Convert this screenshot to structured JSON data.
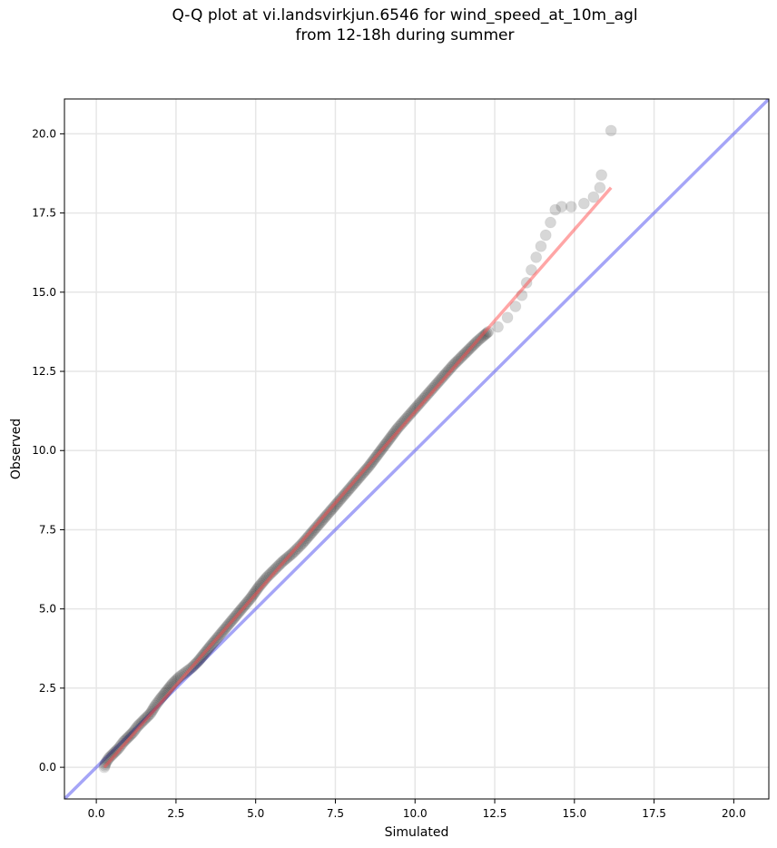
{
  "chart_data": {
    "type": "scatter",
    "title": "Q-Q plot at vi.landsvirkjun.6546 for wind_speed_at_10m_agl\nfrom 12-18h during summer",
    "xlabel": "Simulated",
    "ylabel": "Observed",
    "xlim": [
      -1.0,
      21.1
    ],
    "ylim": [
      -1.0,
      21.1
    ],
    "xticks": [
      "0.0",
      "2.5",
      "5.0",
      "7.5",
      "10.0",
      "12.5",
      "15.0",
      "17.5",
      "20.0"
    ],
    "yticks": [
      "0.0",
      "2.5",
      "5.0",
      "7.5",
      "10.0",
      "12.5",
      "15.0",
      "17.5",
      "20.0"
    ],
    "grid": true,
    "series": [
      {
        "role": "quantiles",
        "color": "#222222",
        "points": [
          [
            0.25,
            0.0
          ],
          [
            0.3,
            0.15
          ],
          [
            0.4,
            0.3
          ],
          [
            0.55,
            0.45
          ],
          [
            0.7,
            0.6
          ],
          [
            0.85,
            0.8
          ],
          [
            1.0,
            0.95
          ],
          [
            1.15,
            1.1
          ],
          [
            1.3,
            1.3
          ],
          [
            1.5,
            1.5
          ],
          [
            1.7,
            1.7
          ],
          [
            1.85,
            1.95
          ],
          [
            2.0,
            2.15
          ],
          [
            2.2,
            2.4
          ],
          [
            2.4,
            2.65
          ],
          [
            2.6,
            2.85
          ],
          [
            2.8,
            3.0
          ],
          [
            3.0,
            3.15
          ],
          [
            3.2,
            3.35
          ],
          [
            3.4,
            3.6
          ],
          [
            3.6,
            3.85
          ],
          [
            3.85,
            4.15
          ],
          [
            4.1,
            4.45
          ],
          [
            4.35,
            4.75
          ],
          [
            4.6,
            5.05
          ],
          [
            4.85,
            5.35
          ],
          [
            5.1,
            5.7
          ],
          [
            5.35,
            6.0
          ],
          [
            5.6,
            6.25
          ],
          [
            5.85,
            6.5
          ],
          [
            6.15,
            6.75
          ],
          [
            6.45,
            7.05
          ],
          [
            6.75,
            7.4
          ],
          [
            7.05,
            7.75
          ],
          [
            7.35,
            8.1
          ],
          [
            7.65,
            8.45
          ],
          [
            7.95,
            8.8
          ],
          [
            8.25,
            9.15
          ],
          [
            8.55,
            9.5
          ],
          [
            8.85,
            9.9
          ],
          [
            9.15,
            10.3
          ],
          [
            9.45,
            10.7
          ],
          [
            9.8,
            11.1
          ],
          [
            10.15,
            11.5
          ],
          [
            10.5,
            11.9
          ],
          [
            10.85,
            12.3
          ],
          [
            11.2,
            12.7
          ],
          [
            11.6,
            13.1
          ],
          [
            11.95,
            13.45
          ],
          [
            12.3,
            13.75
          ],
          [
            12.6,
            13.9
          ],
          [
            12.9,
            14.2
          ],
          [
            13.15,
            14.55
          ],
          [
            13.35,
            14.9
          ],
          [
            13.5,
            15.3
          ],
          [
            13.65,
            15.7
          ],
          [
            13.8,
            16.1
          ],
          [
            13.95,
            16.45
          ],
          [
            14.1,
            16.8
          ],
          [
            14.25,
            17.2
          ],
          [
            14.4,
            17.6
          ],
          [
            14.6,
            17.7
          ],
          [
            14.9,
            17.7
          ],
          [
            15.3,
            17.8
          ],
          [
            15.6,
            18.0
          ],
          [
            15.8,
            18.3
          ],
          [
            15.85,
            18.7
          ],
          [
            16.15,
            20.1
          ]
        ]
      },
      {
        "role": "fit-line",
        "color": "#ff4d4d",
        "from": [
          0.25,
          0.0
        ],
        "to": [
          16.15,
          18.3
        ]
      },
      {
        "role": "identity-line",
        "color": "#5b5bf0",
        "from": [
          -1.0,
          -1.0
        ],
        "to": [
          21.1,
          21.1
        ]
      }
    ]
  }
}
